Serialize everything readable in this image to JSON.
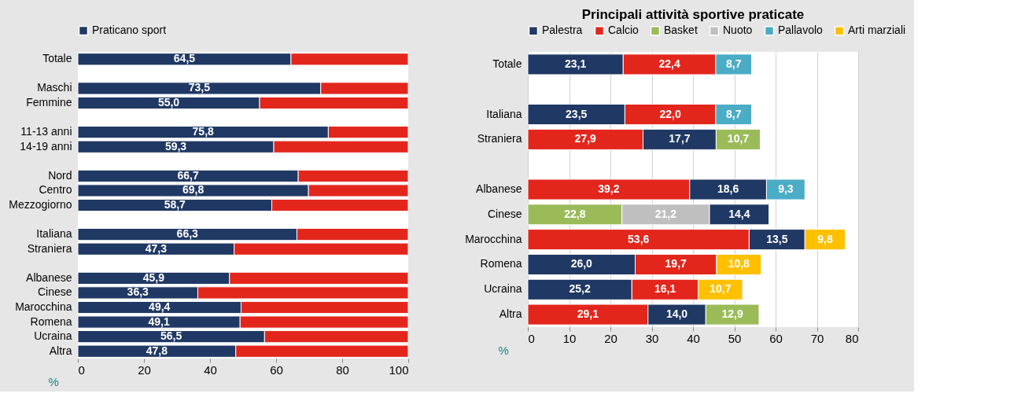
{
  "chart_data": [
    {
      "type": "bar",
      "orientation": "horizontal",
      "stacked": true,
      "legend": "top",
      "grid": false,
      "xlabel": "%",
      "xlim": [
        0,
        100
      ],
      "xticks": [
        0,
        20,
        40,
        60,
        80,
        100
      ],
      "categories": [
        "Totale",
        null,
        "Maschi",
        "Femmine",
        null,
        "11-13 anni",
        "14-19 anni",
        null,
        "Nord",
        "Centro",
        "Mezzogiorno",
        null,
        "Italiana",
        "Straniera",
        null,
        "Albanese",
        "Cinese",
        "Marocchina",
        "Romena",
        "Ucraina",
        "Altra"
      ],
      "series": [
        {
          "name": "Praticano sport",
          "color": "#1f3864",
          "values": [
            64.5,
            null,
            73.5,
            55.0,
            null,
            75.8,
            59.3,
            null,
            66.7,
            69.8,
            58.7,
            null,
            66.3,
            47.3,
            null,
            45.9,
            36.3,
            49.4,
            49.1,
            56.5,
            47.8
          ],
          "value_labels": [
            "64,5",
            null,
            "73,5",
            "55,0",
            null,
            "75,8",
            "59,3",
            null,
            "66,7",
            "69,8",
            "58,7",
            null,
            "66,3",
            "47,3",
            null,
            "45,9",
            "36,3",
            "49,4",
            "49,1",
            "56,5",
            "47,8"
          ]
        },
        {
          "color": "#e3261c",
          "values": [
            35.5,
            null,
            26.5,
            45.0,
            null,
            24.2,
            40.7,
            null,
            33.3,
            30.2,
            41.3,
            null,
            33.7,
            52.7,
            null,
            54.1,
            63.7,
            50.6,
            50.9,
            43.5,
            52.2
          ]
        }
      ]
    },
    {
      "type": "bar",
      "orientation": "horizontal",
      "stacked": true,
      "legend": "top",
      "grid": "x",
      "title": "Principali attività sportive praticate",
      "xlabel": "%",
      "xlim": [
        0,
        80
      ],
      "xticks": [
        0,
        10,
        20,
        30,
        40,
        50,
        60,
        70,
        80
      ],
      "categories": [
        "Totale",
        null,
        "Italiana",
        "Straniera",
        null,
        "Albanese",
        "Cinese",
        "Marocchina",
        "Romena",
        "Ucraina",
        "Altra"
      ],
      "series": [
        {
          "name": "Palestra",
          "color": "#1f3864",
          "values": [
            23.1,
            null,
            23.5,
            17.7,
            null,
            18.6,
            14.4,
            13.5,
            26.0,
            25.2,
            14.0
          ],
          "value_labels": [
            "23,1",
            null,
            "23,5",
            "17,7",
            null,
            "18,6",
            "14,4",
            "13,5",
            "26,0",
            "25,2",
            "14,0"
          ]
        },
        {
          "name": "Calcio",
          "color": "#e3261c",
          "values": [
            22.4,
            null,
            22.0,
            27.9,
            null,
            39.2,
            null,
            53.6,
            19.7,
            16.1,
            29.1
          ],
          "value_labels": [
            "22,4",
            null,
            "22,0",
            "27,9",
            null,
            "39,2",
            null,
            "53,6",
            "19,7",
            "16,1",
            "29,1"
          ]
        },
        {
          "name": "Basket",
          "color": "#9bbb59",
          "values": [
            null,
            null,
            null,
            10.7,
            null,
            null,
            22.8,
            null,
            null,
            null,
            12.9
          ],
          "value_labels": [
            null,
            null,
            null,
            "10,7",
            null,
            null,
            "22,8",
            null,
            null,
            null,
            "12,9"
          ]
        },
        {
          "name": "Nuoto",
          "color": "#bfbfbf",
          "values": [
            null,
            null,
            null,
            null,
            null,
            null,
            21.2,
            null,
            null,
            null,
            null
          ],
          "value_labels": [
            null,
            null,
            null,
            null,
            null,
            null,
            "21,2",
            null,
            null,
            null,
            null
          ]
        },
        {
          "name": "Pallavolo",
          "color": "#4bacc6",
          "values": [
            8.7,
            null,
            8.7,
            null,
            null,
            9.3,
            null,
            null,
            null,
            null,
            null
          ],
          "value_labels": [
            "8,7",
            null,
            "8,7",
            null,
            null,
            "9,3",
            null,
            null,
            null,
            null,
            null
          ]
        },
        {
          "name": "Arti marziali",
          "color": "#ffc000",
          "values": [
            null,
            null,
            null,
            null,
            null,
            null,
            null,
            9.8,
            10.8,
            10.7,
            null
          ],
          "value_labels": [
            null,
            null,
            null,
            null,
            null,
            null,
            null,
            "9,8",
            "10,8",
            "10,7",
            null
          ]
        }
      ]
    }
  ]
}
